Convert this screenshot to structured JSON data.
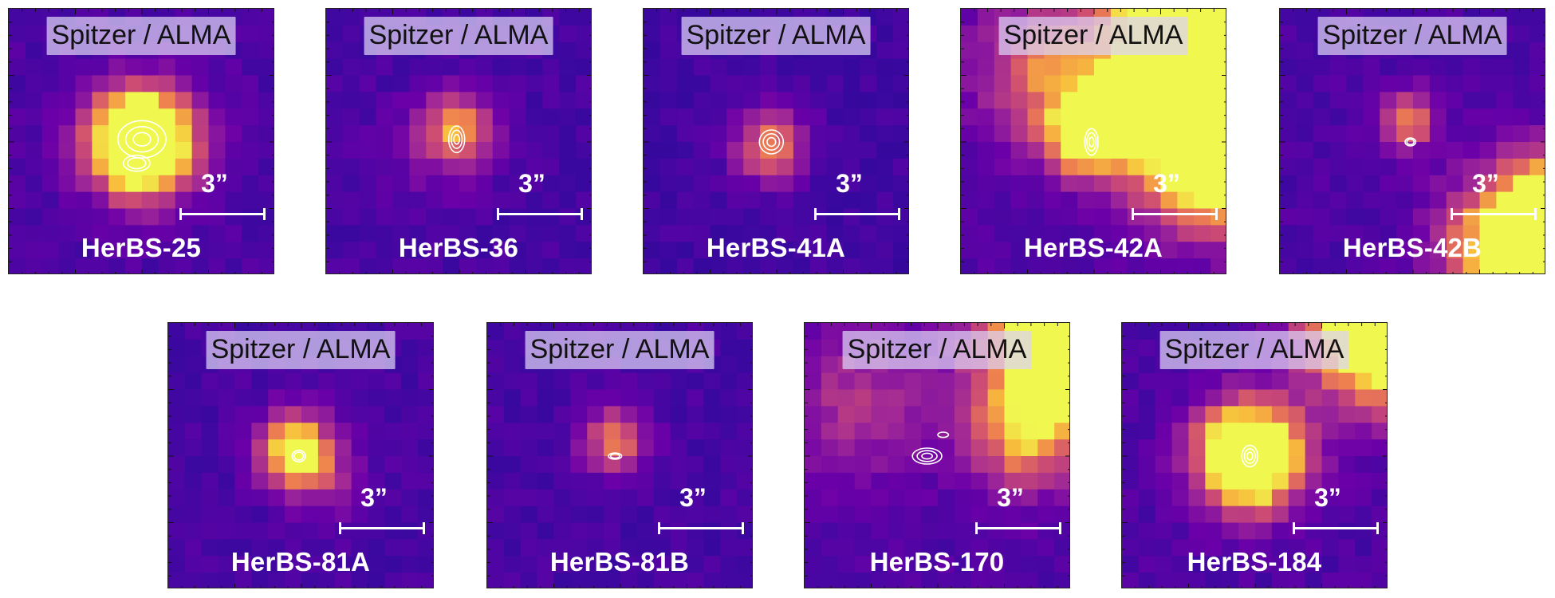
{
  "figure": {
    "panels": [
      {
        "header": "Spitzer / ALMA",
        "scale_label": "3”",
        "name": "HerBS-25",
        "colormap": "plasma",
        "contour_color": "#ffffff"
      },
      {
        "header": "Spitzer / ALMA",
        "scale_label": "3”",
        "name": "HerBS-36",
        "colormap": "plasma",
        "contour_color": "#ffffff"
      },
      {
        "header": "Spitzer / ALMA",
        "scale_label": "3”",
        "name": "HerBS-41A",
        "colormap": "plasma",
        "contour_color": "#ffffff"
      },
      {
        "header": "Spitzer / ALMA",
        "scale_label": "3”",
        "name": "HerBS-42A",
        "colormap": "plasma",
        "contour_color": "#ffffff"
      },
      {
        "header": "Spitzer / ALMA",
        "scale_label": "3”",
        "name": "HerBS-42B",
        "colormap": "plasma",
        "contour_color": "#ffffff"
      },
      {
        "header": "Spitzer / ALMA",
        "scale_label": "3”",
        "name": "HerBS-81A",
        "colormap": "plasma",
        "contour_color": "#ffffff"
      },
      {
        "header": "Spitzer / ALMA",
        "scale_label": "3”",
        "name": "HerBS-81B",
        "colormap": "plasma",
        "contour_color": "#ffffff"
      },
      {
        "header": "Spitzer / ALMA",
        "scale_label": "3”",
        "name": "HerBS-170",
        "colormap": "plasma",
        "contour_color": "#ffffff"
      },
      {
        "header": "Spitzer / ALMA",
        "scale_label": "3”",
        "name": "HerBS-184",
        "colormap": "plasma",
        "contour_color": "#ffffff"
      }
    ]
  }
}
